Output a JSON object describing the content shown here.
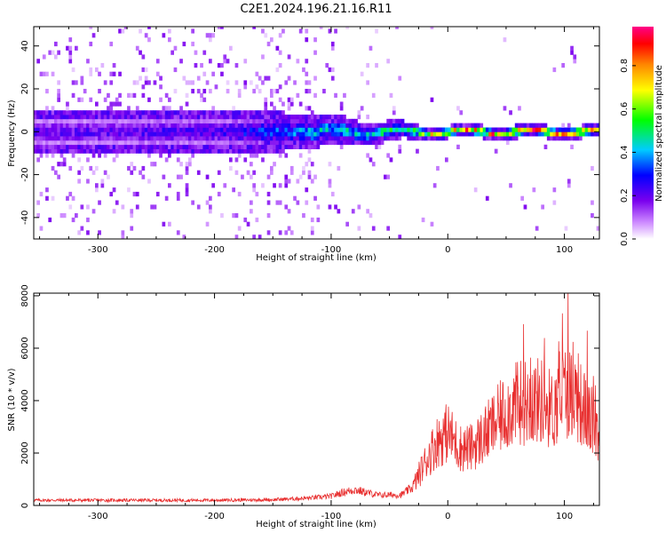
{
  "figure_title": "C2E1.2024.196.21.16.R11",
  "chart_data": [
    {
      "type": "heatmap",
      "xlabel": "Height of straight line (km)",
      "ylabel": "Frequency (Hz)",
      "xlim": [
        -355,
        130
      ],
      "ylim": [
        -50,
        49
      ],
      "xticks": [
        -300,
        -200,
        -100,
        0,
        100
      ],
      "yticks": [
        -40,
        -20,
        0,
        20,
        40
      ],
      "colorbar": {
        "label": "Normalized spectral amplitude",
        "range": [
          0,
          0.98
        ],
        "ticks": [
          0.0,
          0.2,
          0.4,
          0.6,
          0.8
        ],
        "tick_labels": [
          "0.0",
          "0.2",
          "0.4",
          "0.6",
          "0.8"
        ],
        "colormap": "rainbow (white-violet-blue-cyan-green-yellow-orange-red-magenta)"
      },
      "ridge": {
        "description": "band centered near 0 Hz; broad and weak below -150 km, narrow and strong above -30 km",
        "center_hz": 0,
        "x": [
          -350,
          -300,
          -250,
          -200,
          -150,
          -100,
          -50,
          -30,
          0,
          50,
          100,
          125
        ],
        "peak_amplitude": [
          0.22,
          0.22,
          0.24,
          0.25,
          0.35,
          0.45,
          0.55,
          0.6,
          0.8,
          0.85,
          0.9,
          0.9
        ]
      }
    },
    {
      "type": "line",
      "xlabel": "Height of straight line (km)",
      "ylabel": "SNR (10 * v/v)",
      "xlim": [
        -355,
        130
      ],
      "ylim": [
        0,
        8100
      ],
      "xticks": [
        -300,
        -200,
        -100,
        0,
        100
      ],
      "yticks": [
        0,
        2000,
        4000,
        6000,
        8000
      ],
      "grid": false,
      "series": [
        {
          "color": "#e83030",
          "x": [
            -355,
            -300,
            -250,
            -200,
            -150,
            -120,
            -100,
            -90,
            -80,
            -60,
            -40,
            -30,
            -20,
            -10,
            0,
            10,
            20,
            30,
            40,
            50,
            60,
            70,
            80,
            90,
            100,
            110,
            120,
            130
          ],
          "y": [
            200,
            200,
            200,
            200,
            220,
            280,
            350,
            500,
            600,
            400,
            400,
            700,
            1600,
            2400,
            2800,
            2200,
            2200,
            2600,
            3100,
            3600,
            3900,
            4000,
            4000,
            3600,
            4400,
            4200,
            3400,
            2800
          ]
        }
      ]
    }
  ]
}
